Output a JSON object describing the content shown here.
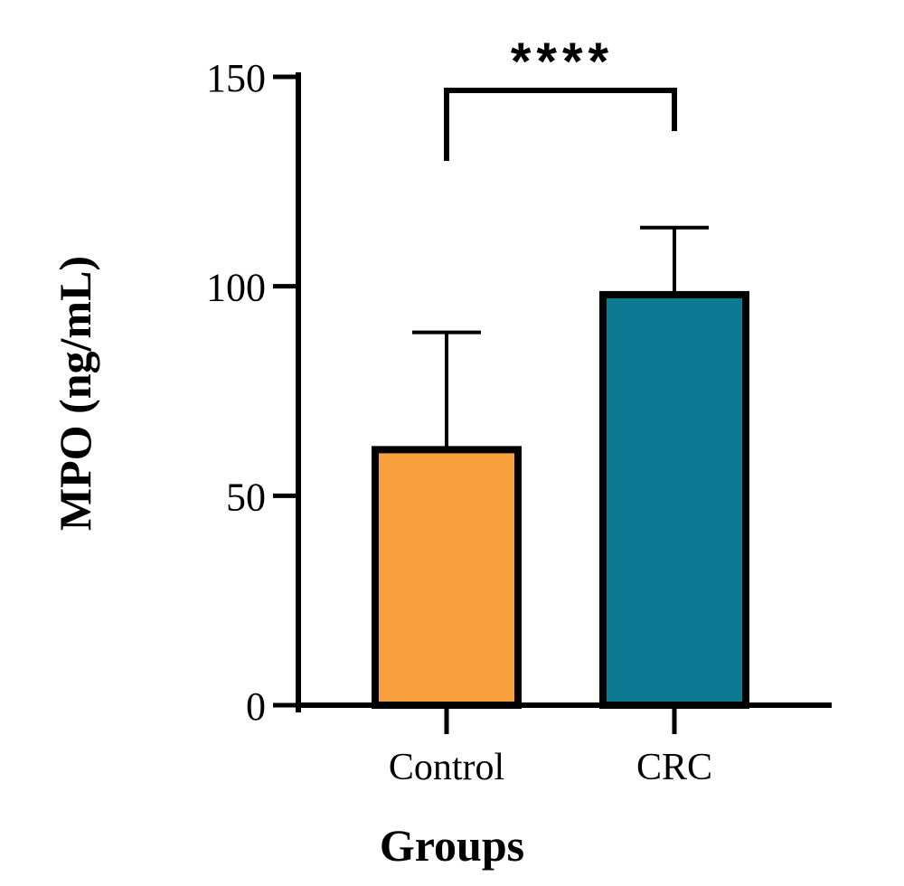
{
  "chart_data": {
    "type": "bar",
    "categories": [
      "Control",
      "CRC"
    ],
    "values": [
      61,
      98
    ],
    "error_upper": [
      89,
      114
    ],
    "colors": [
      "#F9A03F",
      "#0B7A92"
    ],
    "xlabel": "Groups",
    "ylabel": "MPO (ng/mL)",
    "ylim": [
      0,
      150
    ],
    "yticks": [
      0,
      50,
      100,
      150
    ],
    "grid": false,
    "significance": {
      "label": "****",
      "between": [
        "Control",
        "CRC"
      ]
    }
  }
}
